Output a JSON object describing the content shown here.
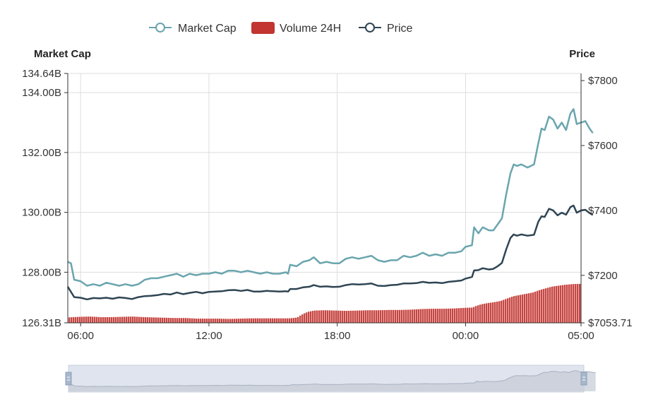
{
  "chart_data": {
    "type": "line",
    "legend": {
      "placement": "top-center",
      "items": [
        {
          "label": "Market Cap",
          "color": "#6aa5ae",
          "marker": "line-circle"
        },
        {
          "label": "Volume 24H",
          "color": "#c23531",
          "marker": "rect"
        },
        {
          "label": "Price",
          "color": "#2f4554",
          "marker": "line-circle"
        }
      ]
    },
    "left_axis": {
      "title": "Market Cap",
      "range": [
        126.31,
        134.64
      ],
      "ticks": [
        {
          "value": 126.31,
          "label": "126.31B"
        },
        {
          "value": 128.0,
          "label": "128.00B"
        },
        {
          "value": 130.0,
          "label": "130.00B"
        },
        {
          "value": 132.0,
          "label": "132.00B"
        },
        {
          "value": 134.0,
          "label": "134.00B"
        },
        {
          "value": 134.64,
          "label": "134.64B"
        }
      ]
    },
    "right_axis": {
      "title": "Price",
      "range": [
        7053.71,
        7822
      ],
      "ticks": [
        {
          "value": 7053.71,
          "label": "$7053.71"
        },
        {
          "value": 7200,
          "label": "$7200"
        },
        {
          "value": 7400,
          "label": "$7400"
        },
        {
          "value": 7600,
          "label": "$7600"
        },
        {
          "value": 7800,
          "label": "$7800"
        }
      ]
    },
    "x_axis": {
      "range_hours": [
        0,
        24
      ],
      "ticks": [
        {
          "hour": 0.6,
          "label": "06:00"
        },
        {
          "hour": 6.6,
          "label": "12:00"
        },
        {
          "hour": 12.6,
          "label": "18:00"
        },
        {
          "hour": 18.6,
          "label": "00:00"
        },
        {
          "hour": 24,
          "label": "05:00"
        }
      ]
    },
    "grid": true,
    "series": [
      {
        "name": "Market Cap",
        "color": "#6aa5ae",
        "axis": "left",
        "points": [
          [
            0,
            128.35
          ],
          [
            0.15,
            128.3
          ],
          [
            0.3,
            127.75
          ],
          [
            0.6,
            127.7
          ],
          [
            0.9,
            127.55
          ],
          [
            1.2,
            127.6
          ],
          [
            1.5,
            127.55
          ],
          [
            1.8,
            127.65
          ],
          [
            2.1,
            127.6
          ],
          [
            2.4,
            127.55
          ],
          [
            2.7,
            127.6
          ],
          [
            3.0,
            127.55
          ],
          [
            3.3,
            127.6
          ],
          [
            3.6,
            127.75
          ],
          [
            3.9,
            127.8
          ],
          [
            4.2,
            127.8
          ],
          [
            4.5,
            127.85
          ],
          [
            4.8,
            127.9
          ],
          [
            5.1,
            127.95
          ],
          [
            5.4,
            127.85
          ],
          [
            5.7,
            127.95
          ],
          [
            6.0,
            127.9
          ],
          [
            6.3,
            127.95
          ],
          [
            6.6,
            127.95
          ],
          [
            6.9,
            128.0
          ],
          [
            7.2,
            127.95
          ],
          [
            7.5,
            128.05
          ],
          [
            7.8,
            128.05
          ],
          [
            8.1,
            128.0
          ],
          [
            8.4,
            128.05
          ],
          [
            8.7,
            128.0
          ],
          [
            9.0,
            127.95
          ],
          [
            9.3,
            128.0
          ],
          [
            9.6,
            127.95
          ],
          [
            9.9,
            127.95
          ],
          [
            10.2,
            128.0
          ],
          [
            10.3,
            127.95
          ],
          [
            10.4,
            128.25
          ],
          [
            10.7,
            128.2
          ],
          [
            11.0,
            128.35
          ],
          [
            11.3,
            128.4
          ],
          [
            11.5,
            128.5
          ],
          [
            11.8,
            128.3
          ],
          [
            12.1,
            128.35
          ],
          [
            12.4,
            128.3
          ],
          [
            12.7,
            128.3
          ],
          [
            13.0,
            128.45
          ],
          [
            13.3,
            128.5
          ],
          [
            13.6,
            128.45
          ],
          [
            13.9,
            128.5
          ],
          [
            14.2,
            128.55
          ],
          [
            14.5,
            128.4
          ],
          [
            14.8,
            128.35
          ],
          [
            15.1,
            128.4
          ],
          [
            15.4,
            128.4
          ],
          [
            15.7,
            128.55
          ],
          [
            16.0,
            128.5
          ],
          [
            16.3,
            128.55
          ],
          [
            16.6,
            128.65
          ],
          [
            16.9,
            128.55
          ],
          [
            17.2,
            128.6
          ],
          [
            17.5,
            128.55
          ],
          [
            17.8,
            128.65
          ],
          [
            18.1,
            128.65
          ],
          [
            18.4,
            128.7
          ],
          [
            18.6,
            128.85
          ],
          [
            18.9,
            128.9
          ],
          [
            19.0,
            129.5
          ],
          [
            19.2,
            129.3
          ],
          [
            19.4,
            129.5
          ],
          [
            19.7,
            129.4
          ],
          [
            19.9,
            129.4
          ],
          [
            20.1,
            129.6
          ],
          [
            20.3,
            129.8
          ],
          [
            20.5,
            130.6
          ],
          [
            20.7,
            131.3
          ],
          [
            20.85,
            131.6
          ],
          [
            21.0,
            131.55
          ],
          [
            21.2,
            131.6
          ],
          [
            21.5,
            131.5
          ],
          [
            21.8,
            131.6
          ],
          [
            22.0,
            132.3
          ],
          [
            22.15,
            132.8
          ],
          [
            22.3,
            132.75
          ],
          [
            22.5,
            133.2
          ],
          [
            22.7,
            133.1
          ],
          [
            22.9,
            132.8
          ],
          [
            23.1,
            133.0
          ],
          [
            23.3,
            132.75
          ],
          [
            23.5,
            133.3
          ],
          [
            23.65,
            133.45
          ],
          [
            23.8,
            132.95
          ],
          [
            24.0,
            133.0
          ],
          [
            24.2,
            133.05
          ],
          [
            24.4,
            132.8
          ],
          [
            24.55,
            132.65
          ]
        ]
      },
      {
        "name": "Price",
        "color": "#2f4554",
        "axis": "right",
        "points": [
          [
            0,
            7165
          ],
          [
            0.3,
            7133
          ],
          [
            0.6,
            7131
          ],
          [
            0.9,
            7126
          ],
          [
            1.2,
            7130
          ],
          [
            1.5,
            7129
          ],
          [
            1.8,
            7131
          ],
          [
            2.1,
            7128
          ],
          [
            2.4,
            7132
          ],
          [
            2.7,
            7130
          ],
          [
            3.0,
            7127
          ],
          [
            3.3,
            7133
          ],
          [
            3.6,
            7136
          ],
          [
            3.9,
            7137
          ],
          [
            4.2,
            7139
          ],
          [
            4.5,
            7143
          ],
          [
            4.8,
            7141
          ],
          [
            5.1,
            7147
          ],
          [
            5.4,
            7142
          ],
          [
            5.7,
            7146
          ],
          [
            6.0,
            7149
          ],
          [
            6.3,
            7145
          ],
          [
            6.6,
            7149
          ],
          [
            6.9,
            7150
          ],
          [
            7.2,
            7151
          ],
          [
            7.5,
            7154
          ],
          [
            7.8,
            7155
          ],
          [
            8.1,
            7152
          ],
          [
            8.4,
            7155
          ],
          [
            8.7,
            7150
          ],
          [
            9.0,
            7150
          ],
          [
            9.3,
            7152
          ],
          [
            9.6,
            7151
          ],
          [
            9.9,
            7150
          ],
          [
            10.2,
            7151
          ],
          [
            10.3,
            7150
          ],
          [
            10.4,
            7158
          ],
          [
            10.7,
            7158
          ],
          [
            11.0,
            7163
          ],
          [
            11.3,
            7165
          ],
          [
            11.5,
            7170
          ],
          [
            11.8,
            7165
          ],
          [
            12.1,
            7166
          ],
          [
            12.4,
            7164
          ],
          [
            12.7,
            7165
          ],
          [
            13.0,
            7170
          ],
          [
            13.3,
            7173
          ],
          [
            13.6,
            7172
          ],
          [
            13.9,
            7173
          ],
          [
            14.2,
            7175
          ],
          [
            14.5,
            7168
          ],
          [
            14.8,
            7167
          ],
          [
            15.1,
            7170
          ],
          [
            15.4,
            7171
          ],
          [
            15.7,
            7175
          ],
          [
            16.0,
            7175
          ],
          [
            16.3,
            7176
          ],
          [
            16.6,
            7180
          ],
          [
            16.9,
            7177
          ],
          [
            17.2,
            7178
          ],
          [
            17.5,
            7176
          ],
          [
            17.8,
            7180
          ],
          [
            18.1,
            7182
          ],
          [
            18.4,
            7184
          ],
          [
            18.6,
            7190
          ],
          [
            18.9,
            7195
          ],
          [
            19.0,
            7215
          ],
          [
            19.2,
            7216
          ],
          [
            19.4,
            7222
          ],
          [
            19.7,
            7218
          ],
          [
            19.9,
            7220
          ],
          [
            20.1,
            7228
          ],
          [
            20.3,
            7238
          ],
          [
            20.5,
            7280
          ],
          [
            20.7,
            7315
          ],
          [
            20.85,
            7326
          ],
          [
            21.0,
            7322
          ],
          [
            21.2,
            7326
          ],
          [
            21.5,
            7322
          ],
          [
            21.8,
            7325
          ],
          [
            22.0,
            7365
          ],
          [
            22.15,
            7382
          ],
          [
            22.3,
            7380
          ],
          [
            22.5,
            7405
          ],
          [
            22.7,
            7400
          ],
          [
            22.9,
            7385
          ],
          [
            23.1,
            7393
          ],
          [
            23.3,
            7387
          ],
          [
            23.5,
            7410
          ],
          [
            23.65,
            7415
          ],
          [
            23.8,
            7393
          ],
          [
            24.0,
            7400
          ],
          [
            24.2,
            7402
          ],
          [
            24.4,
            7392
          ],
          [
            24.55,
            7386
          ]
        ]
      },
      {
        "name": "Volume 24H",
        "color": "#c23531",
        "type": "bar",
        "axis": "left",
        "points": [
          [
            0,
            126.49
          ],
          [
            0.5,
            126.51
          ],
          [
            1.0,
            126.52
          ],
          [
            1.5,
            126.5
          ],
          [
            2.0,
            126.5
          ],
          [
            2.5,
            126.51
          ],
          [
            3.0,
            126.52
          ],
          [
            3.5,
            126.5
          ],
          [
            4.0,
            126.49
          ],
          [
            4.5,
            126.48
          ],
          [
            5.0,
            126.47
          ],
          [
            5.5,
            126.47
          ],
          [
            6.0,
            126.45
          ],
          [
            6.5,
            126.45
          ],
          [
            7.0,
            126.45
          ],
          [
            7.5,
            126.44
          ],
          [
            8.0,
            126.45
          ],
          [
            8.5,
            126.46
          ],
          [
            9.0,
            126.46
          ],
          [
            9.5,
            126.46
          ],
          [
            10.0,
            126.46
          ],
          [
            10.3,
            126.46
          ],
          [
            10.5,
            126.47
          ],
          [
            10.7,
            126.49
          ],
          [
            10.85,
            126.56
          ],
          [
            11.0,
            126.62
          ],
          [
            11.2,
            126.68
          ],
          [
            11.5,
            126.72
          ],
          [
            12.0,
            126.73
          ],
          [
            12.5,
            126.72
          ],
          [
            13.0,
            126.71
          ],
          [
            13.5,
            126.72
          ],
          [
            14.0,
            126.73
          ],
          [
            14.5,
            126.73
          ],
          [
            15.0,
            126.74
          ],
          [
            15.5,
            126.74
          ],
          [
            16.0,
            126.75
          ],
          [
            16.5,
            126.77
          ],
          [
            17.0,
            126.78
          ],
          [
            17.5,
            126.78
          ],
          [
            18.0,
            126.79
          ],
          [
            18.5,
            126.81
          ],
          [
            18.9,
            126.82
          ],
          [
            19.0,
            126.86
          ],
          [
            19.3,
            126.93
          ],
          [
            19.6,
            126.97
          ],
          [
            19.9,
            127.0
          ],
          [
            20.2,
            127.04
          ],
          [
            20.5,
            127.12
          ],
          [
            20.8,
            127.2
          ],
          [
            21.1,
            127.24
          ],
          [
            21.4,
            127.28
          ],
          [
            21.7,
            127.32
          ],
          [
            22.0,
            127.4
          ],
          [
            22.3,
            127.46
          ],
          [
            22.6,
            127.52
          ],
          [
            22.9,
            127.55
          ],
          [
            23.2,
            127.58
          ],
          [
            23.5,
            127.6
          ],
          [
            23.8,
            127.61
          ],
          [
            24.1,
            127.61
          ],
          [
            24.4,
            127.6
          ],
          [
            24.6,
            127.6
          ]
        ]
      }
    ],
    "data_zoom": {
      "start_percent": 0,
      "end_percent": 100
    }
  }
}
